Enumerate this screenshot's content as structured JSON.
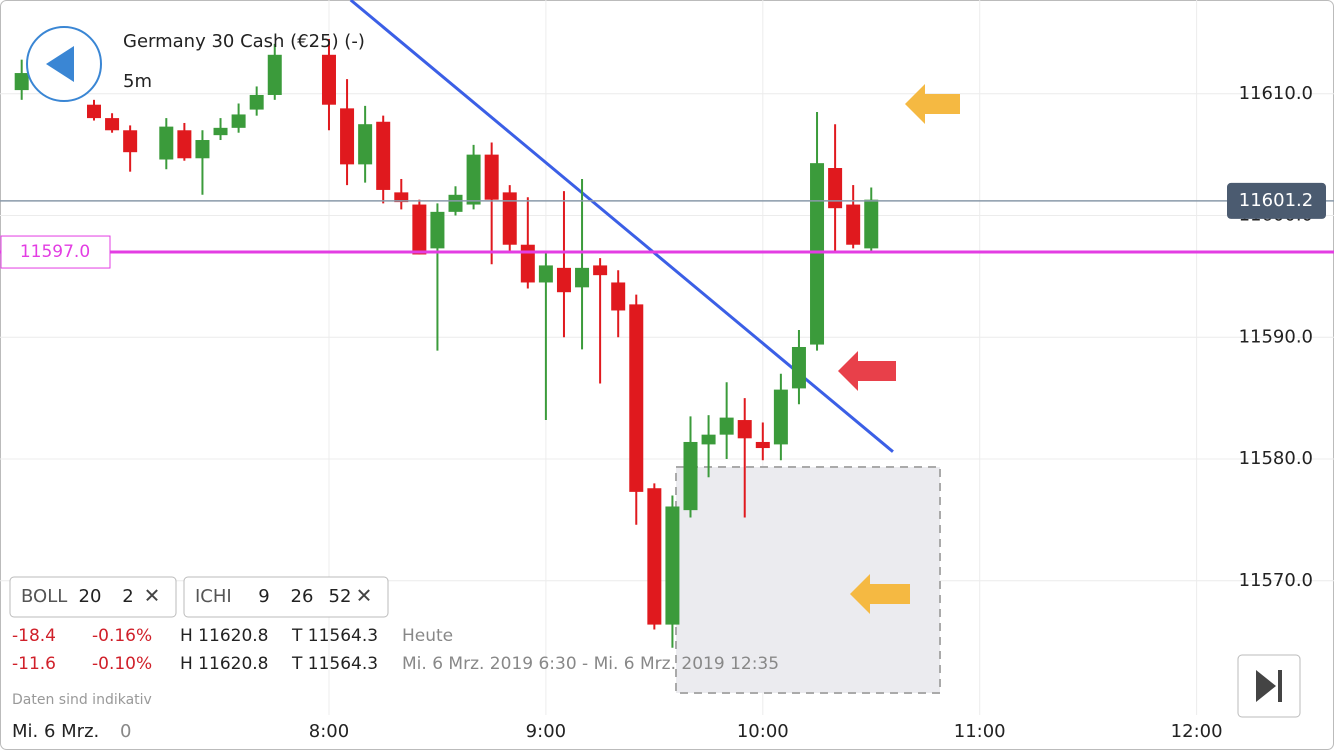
{
  "chart_data": {
    "type": "candlestick",
    "x": [
      "6:35",
      "6:55",
      "7:00",
      "7:05",
      "7:15",
      "7:20",
      "7:25",
      "7:30",
      "7:35",
      "7:40",
      "7:45",
      "8:00",
      "8:05",
      "8:10",
      "8:15",
      "8:20",
      "8:25",
      "8:30",
      "8:35",
      "8:40",
      "8:45",
      "8:50",
      "8:55",
      "9:00",
      "9:05",
      "9:10",
      "9:15",
      "9:20",
      "9:25",
      "9:30",
      "9:35",
      "9:40",
      "9:45",
      "9:50",
      "9:55",
      "10:00",
      "10:05",
      "10:10",
      "10:15",
      "10:20",
      "10:25",
      "10:30"
    ],
    "open": [
      11610.3,
      11609.1,
      11608.0,
      11607.0,
      11604.6,
      11607.0,
      11604.7,
      11606.6,
      11607.2,
      11608.7,
      11609.9,
      11613.2,
      11608.8,
      11604.2,
      11607.7,
      11601.9,
      11600.9,
      11597.3,
      11600.3,
      11600.9,
      11605.0,
      11601.9,
      11597.6,
      11594.5,
      11595.7,
      11594.1,
      11595.9,
      11594.5,
      11592.7,
      11577.6,
      11566.4,
      11575.8,
      11581.2,
      11582.0,
      11583.2,
      11581.4,
      11581.2,
      11585.8,
      11589.4,
      11603.9,
      11600.9,
      11597.3
    ],
    "high": [
      11612.8,
      11609.5,
      11608.4,
      11607.4,
      11608.0,
      11607.6,
      11607.0,
      11608.0,
      11609.2,
      11610.6,
      11614.1,
      11614.5,
      11611.2,
      11609.0,
      11608.2,
      11603.0,
      11601.3,
      11601.0,
      11602.4,
      11605.8,
      11606.0,
      11602.5,
      11601.5,
      11597.0,
      11602.0,
      11603.0,
      11596.5,
      11595.5,
      11593.5,
      11578.0,
      11577.0,
      11583.5,
      11583.6,
      11586.3,
      11585.0,
      11583.0,
      11587.0,
      11590.6,
      11608.5,
      11607.5,
      11602.5,
      11602.3
    ],
    "low": [
      11609.5,
      11607.8,
      11606.8,
      11603.6,
      11603.8,
      11604.5,
      11601.7,
      11606.2,
      11606.8,
      11608.2,
      11609.5,
      11607.0,
      11602.5,
      11602.7,
      11601.0,
      11600.5,
      11596.8,
      11588.9,
      11600.0,
      11600.5,
      11596.0,
      11597.0,
      11594.0,
      11583.2,
      11590.0,
      11589.0,
      11586.2,
      11590.0,
      11574.6,
      11566.0,
      11564.5,
      11575.2,
      11578.5,
      11580.0,
      11575.2,
      11579.9,
      11579.9,
      11584.5,
      11588.9,
      11597.0,
      11597.3,
      11597.0
    ],
    "close": [
      11611.7,
      11608.0,
      11607.0,
      11605.2,
      11607.3,
      11604.7,
      11606.2,
      11607.2,
      11608.3,
      11609.9,
      11613.2,
      11609.1,
      11604.2,
      11607.5,
      11602.1,
      11601.1,
      11596.8,
      11600.3,
      11601.7,
      11605.0,
      11601.3,
      11597.6,
      11594.5,
      11595.9,
      11593.7,
      11595.7,
      11595.1,
      11592.2,
      11577.3,
      11566.4,
      11576.1,
      11581.4,
      11582.0,
      11583.4,
      11581.7,
      11580.9,
      11585.7,
      11589.2,
      11604.3,
      11600.6,
      11597.6,
      11601.3
    ],
    "up_color": "#3b9b3b",
    "down_color": "#e0191e",
    "xlim": [
      "6:29",
      "12:38"
    ],
    "ylim": [
      11556.1,
      11617.7
    ],
    "xticks": [
      "8:00",
      "9:00",
      "10:00",
      "11:00",
      "12:00"
    ],
    "yticks": [
      {
        "value": 11570,
        "label": "11570.0"
      },
      {
        "value": 11580,
        "label": "11580.0"
      },
      {
        "value": 11590,
        "label": "11590.0"
      },
      {
        "value": 11600,
        "label": "11600.0"
      },
      {
        "value": 11610,
        "label": "11610.0"
      }
    ],
    "grid": true,
    "levels": [
      {
        "value": 11597.0,
        "label": "11597.0",
        "color": "#e33de3",
        "side": "left"
      },
      {
        "value": 11601.2,
        "label": "11601.2",
        "color": "#8a9aaa",
        "side": "right"
      }
    ],
    "trendline": {
      "x": [
        "8:06",
        "10:36"
      ],
      "y": [
        11617.7,
        11580.6
      ],
      "color": "#3b5fe6"
    }
  },
  "header": {
    "title": "Germany 30 Cash (€25) (-)",
    "interval": "5m"
  },
  "indicators": [
    {
      "name": "BOLL",
      "params": [
        "20",
        "2"
      ]
    },
    {
      "name": "ICHI",
      "params": [
        "9",
        "26",
        "52"
      ]
    }
  ],
  "stats": [
    [
      "-18.4",
      "-0.16%",
      "H 11620.8",
      "T 11564.3",
      "Heute"
    ],
    [
      "-11.6",
      "-0.10%",
      "H 11620.8",
      "T 11564.3",
      "Mi. 6 Mrz. 2019 6:30 - Mi. 6 Mrz. 2019 12:35"
    ]
  ],
  "footer": {
    "note": "Daten sind indikativ",
    "date": "Mi. 6 Mrz.",
    "partial_tick": "0"
  }
}
